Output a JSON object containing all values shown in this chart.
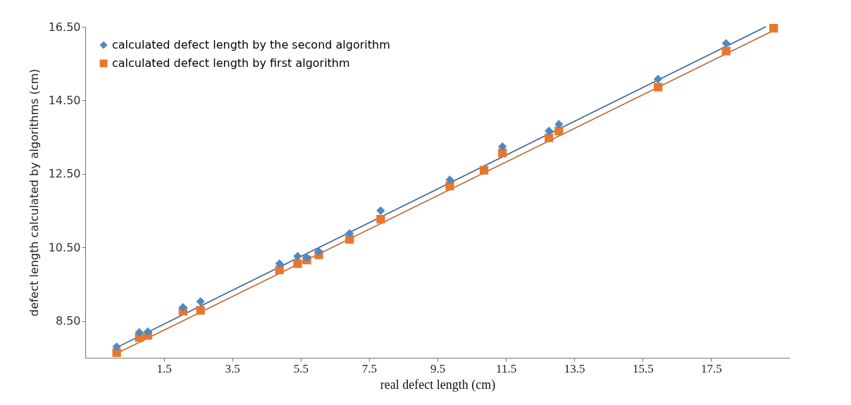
{
  "chart_data": {
    "type": "scatter",
    "xlabel": "real defect length (cm)",
    "ylabel": "defect length calculated by algorithms (cm)",
    "xlim": [
      -0.8,
      19.8
    ],
    "xticks": [
      1.5,
      3.5,
      5.5,
      7.5,
      9.5,
      11.5,
      13.5,
      15.5,
      17.5
    ],
    "ylim": [
      7.5,
      16.5
    ],
    "yticks": [
      {
        "value": 8.5,
        "label": "8.50"
      },
      {
        "value": 10.5,
        "label": "10.50"
      },
      {
        "value": 12.5,
        "label": "12.50"
      },
      {
        "value": 14.5,
        "label": "14.50"
      },
      {
        "value": 16.5,
        "label": "16.50"
      }
    ],
    "grid": false,
    "legend": "top left",
    "series": [
      {
        "name": "calculated defect length by the second algorithm",
        "marker": "diamond",
        "color": "#4f88c6",
        "x": [
          0.12,
          0.78,
          1.03,
          2.06,
          2.57,
          4.88,
          5.41,
          5.68,
          6.03,
          6.93,
          7.84,
          9.86,
          11.4,
          12.76,
          13.05,
          15.95,
          17.94
        ],
        "values": [
          7.8,
          8.19,
          8.21,
          8.87,
          9.03,
          10.06,
          10.26,
          10.22,
          10.39,
          10.88,
          11.5,
          12.34,
          13.24,
          13.67,
          13.85,
          15.08,
          16.05
        ]
      },
      {
        "name": "calculated defect length by first algorithm",
        "marker": "square",
        "color": "#e8772e",
        "x": [
          0.12,
          0.78,
          1.03,
          2.06,
          2.57,
          4.88,
          5.41,
          5.68,
          6.03,
          6.93,
          7.84,
          9.86,
          10.86,
          11.4,
          12.76,
          13.05,
          15.95,
          17.94,
          19.33
        ],
        "values": [
          7.64,
          8.05,
          8.11,
          8.77,
          8.79,
          9.89,
          10.06,
          10.16,
          10.3,
          10.72,
          11.27,
          12.17,
          12.6,
          13.07,
          13.48,
          13.67,
          14.86,
          15.84,
          16.46
        ]
      },
      {
        "type": "line",
        "color": "#2f5f96",
        "x": [
          0.12,
          19.1
        ],
        "values": [
          7.78,
          16.5
        ]
      },
      {
        "type": "line",
        "color": "#c0622a",
        "x": [
          0.12,
          19.33
        ],
        "values": [
          7.62,
          16.4
        ]
      }
    ]
  }
}
